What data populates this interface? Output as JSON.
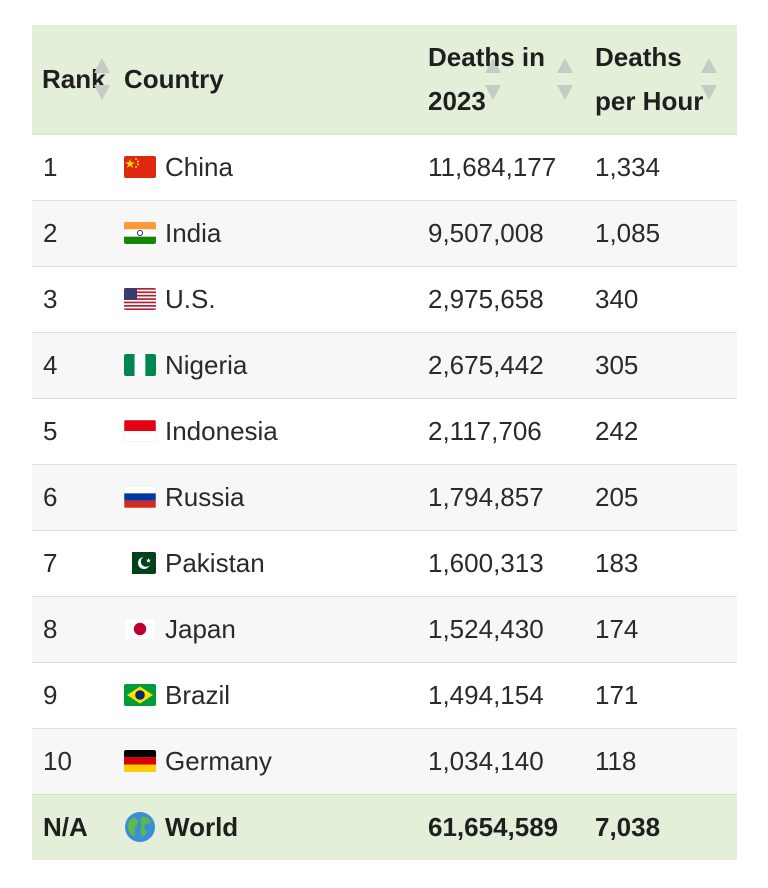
{
  "table": {
    "headers": {
      "rank": "Rank",
      "country": "Country",
      "deaths_line1": "Deaths in",
      "deaths_line2": "2023",
      "hour_line1": "Deaths",
      "hour_line2": "per Hour"
    },
    "rows": [
      {
        "rank": "1",
        "country": "China",
        "flag": "china-flag-icon",
        "deaths": "11,684,177",
        "per_hour": "1,334"
      },
      {
        "rank": "2",
        "country": "India",
        "flag": "india-flag-icon",
        "deaths": "9,507,008",
        "per_hour": "1,085"
      },
      {
        "rank": "3",
        "country": "U.S.",
        "flag": "us-flag-icon",
        "deaths": "2,975,658",
        "per_hour": "340"
      },
      {
        "rank": "4",
        "country": "Nigeria",
        "flag": "nigeria-flag-icon",
        "deaths": "2,675,442",
        "per_hour": "305"
      },
      {
        "rank": "5",
        "country": "Indonesia",
        "flag": "indonesia-flag-icon",
        "deaths": "2,117,706",
        "per_hour": "242"
      },
      {
        "rank": "6",
        "country": "Russia",
        "flag": "russia-flag-icon",
        "deaths": "1,794,857",
        "per_hour": "205"
      },
      {
        "rank": "7",
        "country": "Pakistan",
        "flag": "pakistan-flag-icon",
        "deaths": "1,600,313",
        "per_hour": "183"
      },
      {
        "rank": "8",
        "country": "Japan",
        "flag": "japan-flag-icon",
        "deaths": "1,524,430",
        "per_hour": "174"
      },
      {
        "rank": "9",
        "country": "Brazil",
        "flag": "brazil-flag-icon",
        "deaths": "1,494,154",
        "per_hour": "171"
      },
      {
        "rank": "10",
        "country": "Germany",
        "flag": "germany-flag-icon",
        "deaths": "1,034,140",
        "per_hour": "118"
      }
    ],
    "total": {
      "rank": "N/A",
      "country": "World",
      "icon": "globe-icon",
      "deaths": "61,654,589",
      "per_hour": "7,038"
    }
  },
  "colors": {
    "header_bg": "#e3efd8",
    "total_row_bg": "#e3efd8",
    "stripe_bg": "#f7f7f7",
    "sort_arrow": "#c5cbc5"
  }
}
